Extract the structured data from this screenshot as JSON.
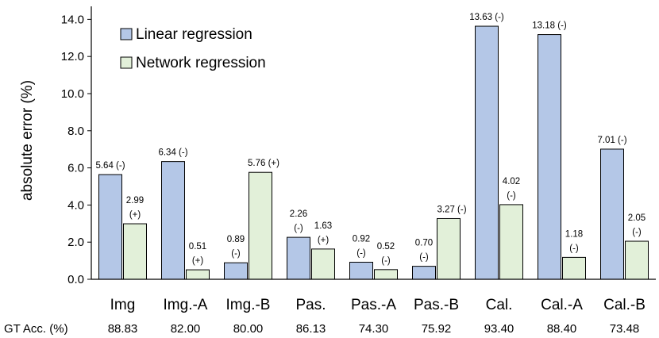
{
  "chart_data": {
    "type": "bar",
    "title": "",
    "xlabel": "",
    "ylabel": "absolute error (%)",
    "ylim": [
      0,
      14.7
    ],
    "yticks": [
      "0.0",
      "2.0",
      "4.0",
      "6.0",
      "8.0",
      "10.0",
      "12.0",
      "14.0"
    ],
    "ytick_values": [
      0,
      2,
      4,
      6,
      8,
      10,
      12,
      14
    ],
    "categories": [
      "Img",
      "Img.-A",
      "Img.-B",
      "Pas.",
      "Pas.-A",
      "Pas.-B",
      "Cal.",
      "Cal.-A",
      "Cal.-B"
    ],
    "series": [
      {
        "name": "Linear regression",
        "color": "#b4c7e7",
        "values": [
          5.64,
          6.34,
          0.89,
          2.26,
          0.92,
          0.7,
          13.63,
          13.18,
          7.01
        ],
        "value_labels": [
          "5.64",
          "6.34",
          "0.89",
          "2.26",
          "0.92",
          "0.70",
          "13.63",
          "13.18",
          "7.01"
        ],
        "signs": [
          "(-)",
          "(-)",
          "(-)",
          "(-)",
          "(-)",
          "(-)",
          "(-)",
          "(-)",
          "(-)"
        ],
        "label_layout": [
          "inline",
          "inline",
          "stacked",
          "stacked",
          "stacked",
          "stacked",
          "inline",
          "inline",
          "inline"
        ]
      },
      {
        "name": "Network regression",
        "color": "#e2f0d9",
        "values": [
          2.99,
          0.51,
          5.76,
          1.63,
          0.52,
          3.27,
          4.02,
          1.18,
          2.05
        ],
        "value_labels": [
          "2.99",
          "0.51",
          "5.76",
          "1.63",
          "0.52",
          "3.27",
          "4.02",
          "1.18",
          "2.05"
        ],
        "signs": [
          "(+)",
          "(+)",
          "(+)",
          "(+)",
          "(-)",
          "(-)",
          "(-)",
          "(-)",
          "(-)"
        ],
        "label_layout": [
          "stacked",
          "stacked",
          "inline",
          "stacked",
          "stacked",
          "inline",
          "stacked",
          "stacked",
          "stacked"
        ]
      }
    ],
    "legend": {
      "position": "top-left",
      "entries": [
        "Linear regression",
        "Network regression"
      ]
    },
    "row_label": "GT Acc. (%)",
    "gt_acc": [
      "88.83",
      "82.00",
      "80.00",
      "86.13",
      "74.30",
      "75.92",
      "93.40",
      "88.40",
      "73.48"
    ]
  }
}
